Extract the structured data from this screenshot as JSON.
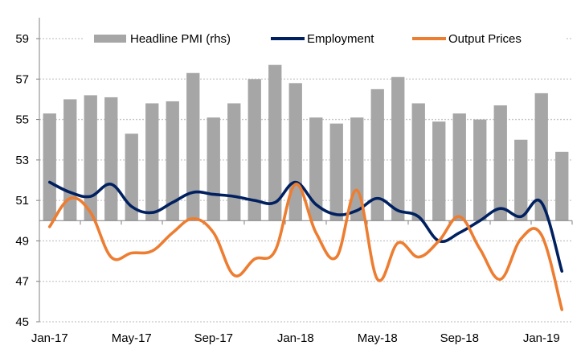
{
  "chart_data": {
    "type": "bar+line",
    "title": "",
    "xlabel": "",
    "ylabel": "",
    "ylim": [
      45,
      59
    ],
    "yticks": [
      "45",
      "47",
      "49",
      "51",
      "53",
      "55",
      "57",
      "59"
    ],
    "bar_baseline": 50,
    "grid": "horizontal dotted",
    "legend_position": "top",
    "categories": [
      "Jan-17",
      "Feb-17",
      "Mar-17",
      "Apr-17",
      "May-17",
      "Jun-17",
      "Jul-17",
      "Aug-17",
      "Sep-17",
      "Oct-17",
      "Nov-17",
      "Dec-17",
      "Jan-18",
      "Feb-18",
      "Mar-18",
      "Apr-18",
      "May-18",
      "Jun-18",
      "Jul-18",
      "Aug-18",
      "Sep-18",
      "Oct-18",
      "Nov-18",
      "Dec-18",
      "Jan-19",
      "Feb-19"
    ],
    "xtick_labels": [
      {
        "index": 0,
        "label": "Jan-17"
      },
      {
        "index": 4,
        "label": "May-17"
      },
      {
        "index": 8,
        "label": "Sep-17"
      },
      {
        "index": 12,
        "label": "Jan-18"
      },
      {
        "index": 16,
        "label": "May-18"
      },
      {
        "index": 20,
        "label": "Sep-18"
      },
      {
        "index": 24,
        "label": "Jan-19"
      }
    ],
    "series": [
      {
        "name": "Headline PMI (rhs)",
        "kind": "bar",
        "color": "#a6a6a6",
        "values": [
          55.3,
          56.0,
          56.2,
          56.1,
          54.3,
          55.8,
          55.9,
          57.3,
          55.1,
          55.8,
          57.0,
          57.7,
          56.8,
          55.1,
          54.8,
          55.1,
          56.5,
          57.1,
          55.8,
          54.9,
          55.3,
          55.0,
          55.7,
          54.0,
          56.3,
          53.4
        ]
      },
      {
        "name": "Employment",
        "kind": "line",
        "color": "#002060",
        "values": [
          51.9,
          51.4,
          51.2,
          51.8,
          50.7,
          50.4,
          50.9,
          51.4,
          51.3,
          51.2,
          51.0,
          50.9,
          51.9,
          50.8,
          50.3,
          50.5,
          51.1,
          50.5,
          50.2,
          49.0,
          49.4,
          50.0,
          50.6,
          50.2,
          50.9,
          47.5
        ]
      },
      {
        "name": "Output Prices",
        "kind": "line",
        "color": "#ed7d31",
        "values": [
          49.7,
          51.1,
          50.4,
          48.2,
          48.4,
          48.5,
          49.4,
          50.1,
          49.4,
          47.3,
          48.1,
          48.5,
          51.8,
          49.4,
          48.2,
          51.5,
          47.1,
          48.9,
          48.2,
          49.0,
          50.2,
          48.6,
          47.1,
          49.1,
          49.3,
          45.6
        ]
      }
    ]
  }
}
